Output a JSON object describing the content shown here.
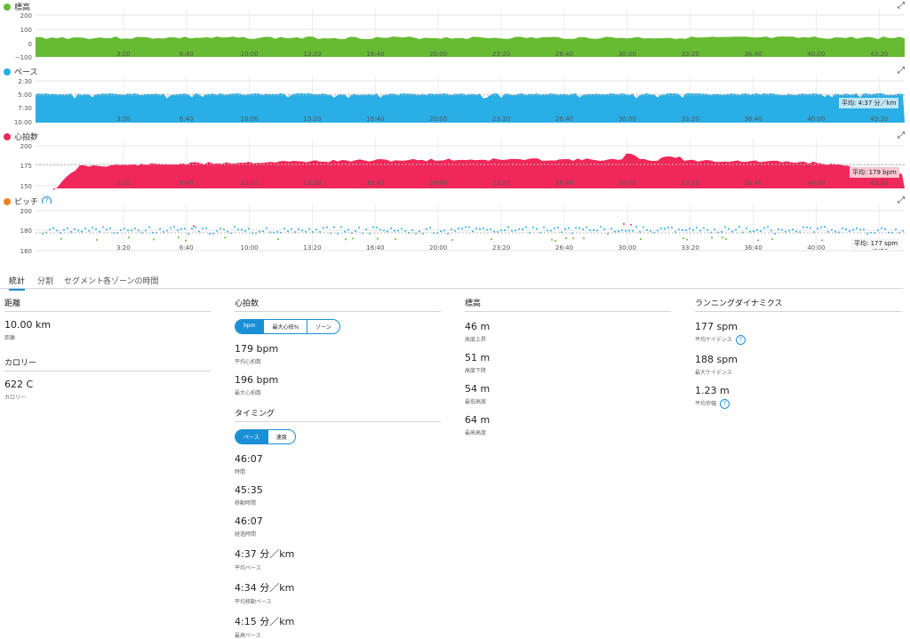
{
  "colors": {
    "elevation": "#66bb33",
    "pace": "#29aee6",
    "hr": "#f0285a",
    "cadence": "#f0821e",
    "accent": "#1a8fd6"
  },
  "x_ticks": [
    "3:20",
    "6:40",
    "10:00",
    "13:20",
    "16:40",
    "20:00",
    "23:20",
    "26:40",
    "30:00",
    "33:20",
    "36:40",
    "40:00",
    "43:20"
  ],
  "charts": {
    "elevation": {
      "title": "標高",
      "y_ticks": [
        "200",
        "100",
        "0",
        "−100"
      ],
      "icon": "expand-icon"
    },
    "pace": {
      "title": "ペース",
      "y_ticks": [
        "2:30",
        "5:00",
        "7:30",
        "10:00"
      ],
      "avg_label": "平均: 4:37 分／km"
    },
    "hr": {
      "title": "心拍数",
      "y_ticks": [
        "200",
        "175",
        "150"
      ],
      "avg_label": "平均: 179 bpm"
    },
    "cadence": {
      "title": "ピッチ",
      "y_ticks": [
        "200",
        "180",
        "160"
      ],
      "avg_label": "平均: 177 spm"
    }
  },
  "tabs": [
    "統計",
    "分割",
    "セグメント",
    "各ゾーンの時間"
  ],
  "col1": {
    "sections": [
      {
        "title": "距離",
        "stats": [
          {
            "value": "10.00 km",
            "label": "距離"
          }
        ]
      },
      {
        "title": "カロリー",
        "stats": [
          {
            "value": "622 C",
            "label": "カロリー"
          }
        ]
      }
    ]
  },
  "col2": {
    "hr_title": "心拍数",
    "hr_toggle": [
      "bpm",
      "最大心拍%",
      "ゾーン"
    ],
    "hr_stats": [
      {
        "value": "179 bpm",
        "label": "平均心拍数"
      },
      {
        "value": "196 bpm",
        "label": "最大心拍数"
      }
    ],
    "timing_title": "タイミング",
    "timing_toggle": [
      "ペース",
      "速度"
    ],
    "timing_stats": [
      {
        "value": "46:07",
        "label": "時間"
      },
      {
        "value": "45:35",
        "label": "移動時間"
      },
      {
        "value": "46:07",
        "label": "経過時間"
      },
      {
        "value": "4:37 分／km",
        "label": "平均ペース"
      },
      {
        "value": "4:34 分／km",
        "label": "平均移動ペース"
      },
      {
        "value": "4:15 分／km",
        "label": "最高ペース"
      }
    ]
  },
  "col3": {
    "title": "標高",
    "stats": [
      {
        "value": "46 m",
        "label": "高度上昇"
      },
      {
        "value": "51 m",
        "label": "高度下降"
      },
      {
        "value": "54 m",
        "label": "最低高度"
      },
      {
        "value": "64 m",
        "label": "最高高度"
      }
    ]
  },
  "col4": {
    "title": "ランニングダイナミクス",
    "stats": [
      {
        "value": "177 spm",
        "label": "平均ケイデンス",
        "help": true
      },
      {
        "value": "188 spm",
        "label": "最大ケイデンス",
        "help": false
      },
      {
        "value": "1.23 m",
        "label": "平均歩幅",
        "help": true
      }
    ]
  }
}
